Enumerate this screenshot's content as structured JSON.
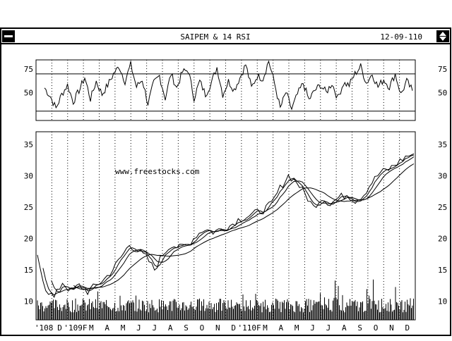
{
  "window": {
    "title": "SAIPEM & 14 RSI",
    "date": "12-09-110",
    "icons": [
      "system-menu-icon",
      "scroll-up-down-icon"
    ]
  },
  "watermark": "www.freestocks.com",
  "chart_data": [
    {
      "type": "line",
      "name": "rsi",
      "y_ticks": [
        "75",
        "50"
      ],
      "ylim": [
        20,
        85
      ],
      "reference_lines": [
        70,
        30
      ],
      "anchors": [
        [
          0,
          55
        ],
        [
          2,
          46
        ],
        [
          4,
          33
        ],
        [
          6,
          48
        ],
        [
          8,
          58
        ],
        [
          10,
          40
        ],
        [
          12,
          52
        ],
        [
          14,
          66
        ],
        [
          16,
          43
        ],
        [
          18,
          62
        ],
        [
          20,
          48
        ],
        [
          22,
          58
        ],
        [
          24,
          70
        ],
        [
          26,
          78
        ],
        [
          28,
          62
        ],
        [
          30,
          80
        ],
        [
          32,
          56
        ],
        [
          34,
          64
        ],
        [
          36,
          38
        ],
        [
          38,
          60
        ],
        [
          40,
          68
        ],
        [
          42,
          44
        ],
        [
          44,
          70
        ],
        [
          46,
          55
        ],
        [
          48,
          72
        ],
        [
          50,
          74
        ],
        [
          52,
          44
        ],
        [
          54,
          62
        ],
        [
          56,
          48
        ],
        [
          58,
          60
        ],
        [
          60,
          77
        ],
        [
          62,
          48
        ],
        [
          64,
          62
        ],
        [
          66,
          53
        ],
        [
          68,
          66
        ],
        [
          70,
          80
        ],
        [
          72,
          55
        ],
        [
          74,
          68
        ],
        [
          76,
          65
        ],
        [
          78,
          84
        ],
        [
          80,
          60
        ],
        [
          82,
          33
        ],
        [
          84,
          50
        ],
        [
          86,
          32
        ],
        [
          88,
          48
        ],
        [
          90,
          60
        ],
        [
          92,
          42
        ],
        [
          94,
          52
        ],
        [
          96,
          58
        ],
        [
          98,
          50
        ],
        [
          100,
          60
        ],
        [
          102,
          44
        ],
        [
          104,
          60
        ],
        [
          106,
          58
        ],
        [
          108,
          70
        ],
        [
          110,
          78
        ],
        [
          112,
          60
        ],
        [
          114,
          70
        ],
        [
          116,
          56
        ],
        [
          118,
          64
        ],
        [
          120,
          56
        ],
        [
          122,
          70
        ],
        [
          124,
          48
        ],
        [
          126,
          62
        ],
        [
          128,
          52
        ]
      ],
      "steps_per_anchor": 4,
      "noise": 4
    },
    {
      "type": "line",
      "name": "price",
      "y_ticks": [
        "35",
        "30",
        "25",
        "20",
        "15",
        "10"
      ],
      "ylim": [
        7,
        37
      ],
      "x_labels": [
        "'108",
        "D",
        "'109F",
        "M",
        "A",
        "M",
        "J",
        "J",
        "A",
        "S",
        "O",
        "N",
        "D",
        "'110F",
        "M",
        "A",
        "M",
        "J",
        "J",
        "A",
        "S",
        "O",
        "N",
        "D"
      ],
      "anchors": [
        [
          0,
          17
        ],
        [
          2,
          12
        ],
        [
          4,
          10.5
        ],
        [
          6,
          13
        ],
        [
          8,
          11.5
        ],
        [
          10,
          12.5
        ],
        [
          12,
          11.5
        ],
        [
          14,
          12.5
        ],
        [
          16,
          13.5
        ],
        [
          18,
          15
        ],
        [
          20,
          17
        ],
        [
          22,
          19
        ],
        [
          24,
          18
        ],
        [
          26,
          17
        ],
        [
          28,
          15
        ],
        [
          30,
          17.5
        ],
        [
          32,
          19
        ],
        [
          34,
          18.5
        ],
        [
          36,
          19
        ],
        [
          38,
          20.5
        ],
        [
          40,
          21.5
        ],
        [
          42,
          21
        ],
        [
          44,
          21.5
        ],
        [
          46,
          22
        ],
        [
          48,
          23
        ],
        [
          50,
          23.5
        ],
        [
          52,
          24
        ],
        [
          54,
          24.5
        ],
        [
          56,
          25.5
        ],
        [
          58,
          28
        ],
        [
          60,
          30
        ],
        [
          62,
          29
        ],
        [
          64,
          27
        ],
        [
          66,
          25
        ],
        [
          68,
          26.5
        ],
        [
          70,
          25.5
        ],
        [
          72,
          26.5
        ],
        [
          74,
          27
        ],
        [
          76,
          26
        ],
        [
          78,
          27
        ],
        [
          80,
          29
        ],
        [
          82,
          30.5
        ],
        [
          84,
          31
        ],
        [
          86,
          32
        ],
        [
          88,
          33
        ],
        [
          90,
          33.5
        ]
      ],
      "steps_per_anchor": 3,
      "noise": 0.6,
      "moving_averages": [
        20,
        50,
        130
      ],
      "volume": {
        "base": 1.2,
        "spread": 2.2,
        "spikes": [
          [
            68,
            4
          ],
          [
            72,
            5.5
          ],
          [
            80,
            6
          ],
          [
            90,
            5
          ]
        ]
      }
    }
  ]
}
